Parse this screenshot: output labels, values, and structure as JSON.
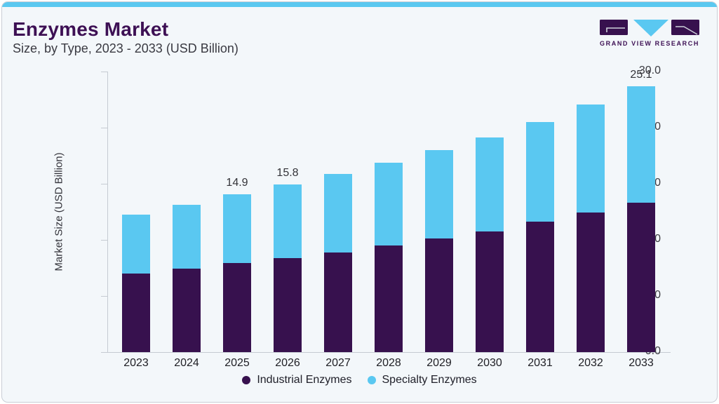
{
  "page": {
    "title": "Enzymes Market",
    "subtitle": "Size, by Type, 2023 - 2033 (USD Billion)",
    "brand_name": "GRAND VIEW RESEARCH"
  },
  "colors": {
    "accent_stripe": "#5bc8f0",
    "card_background": "#f3f7fa",
    "title_purple": "#3d1054",
    "industrial": "#37114e",
    "specialty": "#5ac8f1",
    "axis": "#c5cbd2"
  },
  "chart_data": {
    "type": "bar",
    "stacked": true,
    "title": "Enzymes Market Size, by Type, 2023 - 2033 (USD Billion)",
    "categories": [
      "2023",
      "2024",
      "2025",
      "2026",
      "2027",
      "2028",
      "2029",
      "2030",
      "2031",
      "2032",
      "2033"
    ],
    "series": [
      {
        "name": "Industrial Enzymes",
        "color": "#37114e",
        "values": [
          7.4,
          7.9,
          8.4,
          8.9,
          9.4,
          10.1,
          10.7,
          11.4,
          12.3,
          13.2,
          14.1
        ]
      },
      {
        "name": "Specialty Enzymes",
        "color": "#5ac8f1",
        "values": [
          5.6,
          6.0,
          6.5,
          6.9,
          7.4,
          7.8,
          8.4,
          8.9,
          9.4,
          10.2,
          11.0
        ]
      }
    ],
    "totals": [
      13.0,
      13.9,
      14.9,
      15.8,
      16.8,
      17.9,
      19.1,
      20.3,
      21.7,
      23.4,
      25.1
    ],
    "bar_labels": [
      "",
      "",
      "14.9",
      "15.8",
      "",
      "",
      "",
      "",
      "",
      "",
      "25.1"
    ],
    "xlabel": "",
    "ylabel": "Market Size (USD Billion)",
    "ylim": [
      0,
      30
    ],
    "yticks": [
      "30.0",
      "24.0",
      "18.0",
      "12.0",
      "6.0",
      "0.0"
    ],
    "grid": false,
    "legend_position": "bottom"
  }
}
